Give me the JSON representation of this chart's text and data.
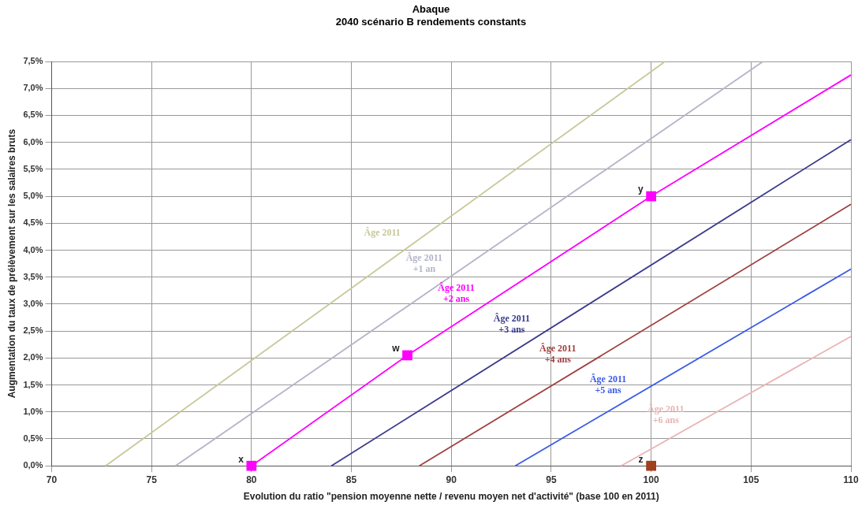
{
  "chart_data": {
    "type": "line",
    "title": "Abaque",
    "subtitle": "2040 scénario B  rendements constants",
    "xlabel": "Evolution du ratio \"pension moyenne nette / revenu moyen net d'activité\" (base 100 en 2011)",
    "ylabel": "Augmentation du taux de prélèvement sur les salaires bruts",
    "series": [
      {
        "name": "Âge 2011",
        "color": "#c8c89a",
        "x": [
          72.7,
          100.7
        ],
        "values": [
          0,
          7.5
        ],
        "marker": "none"
      },
      {
        "name": "Âge 2011 +1 an",
        "color": "#b4b4c8",
        "x": [
          76.2,
          105.6
        ],
        "values": [
          0,
          7.5
        ],
        "marker": "none"
      },
      {
        "name": "Âge 2011 +2 ans",
        "color": "#ff00ff",
        "x": [
          80,
          87.8,
          100,
          110
        ],
        "values": [
          0,
          2.05,
          5.0,
          7.25
        ],
        "marker": "none"
      },
      {
        "name": "Âge 2011 +3 ans",
        "color": "#3a3a8c",
        "x": [
          84.0,
          110
        ],
        "values": [
          0,
          6.05
        ],
        "marker": "none"
      },
      {
        "name": "Âge 2011 +4 ans",
        "color": "#a04040",
        "x": [
          88.4,
          110
        ],
        "values": [
          0,
          4.85
        ],
        "marker": "none"
      },
      {
        "name": "Âge 2011 +5 ans",
        "color": "#3a5ae6",
        "x": [
          93.2,
          110
        ],
        "values": [
          0,
          3.65
        ],
        "marker": "none"
      },
      {
        "name": "Âge 2011 +6 ans",
        "color": "#e8b4b4",
        "x": [
          98.5,
          110
        ],
        "values": [
          0,
          2.4
        ],
        "marker": "none"
      },
      {
        "type": "scatter",
        "color": "#ff00ff",
        "x": [
          80,
          87.8,
          100
        ],
        "values": [
          0,
          2.05,
          5.0
        ],
        "marker": "square"
      },
      {
        "type": "scatter",
        "color": "#a0401c",
        "x": [
          100
        ],
        "values": [
          0
        ],
        "marker": "square"
      }
    ],
    "annotations": [
      {
        "text": "x",
        "x": 80,
        "y": 0
      },
      {
        "text": "w",
        "x": 87.8,
        "y": 2.05
      },
      {
        "text": "y",
        "x": 100,
        "y": 5.0
      },
      {
        "text": "z",
        "x": 100,
        "y": 0
      }
    ],
    "xlim": [
      70,
      110
    ],
    "xticks": [
      70,
      75,
      80,
      85,
      90,
      95,
      100,
      105,
      110
    ],
    "ylim": [
      0,
      7.5
    ],
    "yticks": [
      {
        "value": 0,
        "label": "0,0%"
      },
      {
        "value": 0.5,
        "label": "0,5%"
      },
      {
        "value": 1,
        "label": "1,0%"
      },
      {
        "value": 1.5,
        "label": "1,5%"
      },
      {
        "value": 2,
        "label": "2,0%"
      },
      {
        "value": 2.5,
        "label": "2,5%"
      },
      {
        "value": 3,
        "label": "3,0%"
      },
      {
        "value": 3.5,
        "label": "3,5%"
      },
      {
        "value": 4,
        "label": "4,0%"
      },
      {
        "value": 4.5,
        "label": "4,5%"
      },
      {
        "value": 5,
        "label": "5,0%"
      },
      {
        "value": 5.5,
        "label": "5,5%"
      },
      {
        "value": 6,
        "label": "6,0%"
      },
      {
        "value": 6.5,
        "label": "6,5%"
      },
      {
        "value": 7,
        "label": "7,0%"
      },
      {
        "value": 7.5,
        "label": "7,5%"
      }
    ],
    "grid": true,
    "legend": false
  }
}
